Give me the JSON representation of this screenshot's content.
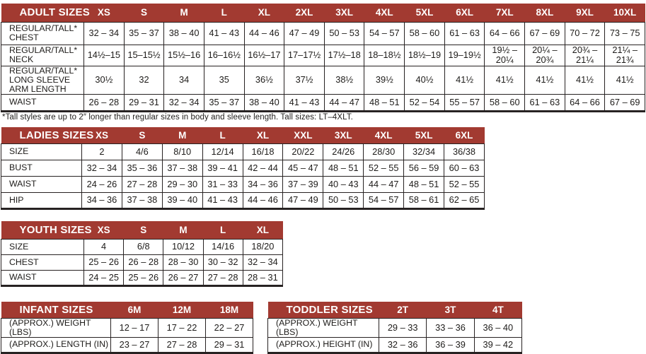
{
  "colors": {
    "header_bg": "#A23A31",
    "header_text": "#FFFFFF",
    "border": "#272222",
    "body_text": "#1E1C1A"
  },
  "footnote": "*Tall styles are up to 2″ longer than regular sizes in body and sleeve length. Tall sizes: LT–4XLT.",
  "tables": {
    "adult": {
      "title": "ADULT SIZES",
      "columns": [
        "XS",
        "S",
        "M",
        "L",
        "XL",
        "2XL",
        "3XL",
        "4XL",
        "5XL",
        "6XL",
        "7XL",
        "8XL",
        "9XL",
        "10XL"
      ],
      "rows": [
        {
          "label": "REGULAR/TALL*\nCHEST",
          "values": [
            "32 – 34",
            "35 – 37",
            "38 – 40",
            "41 – 43",
            "44 – 46",
            "47 – 49",
            "50 – 53",
            "54 – 57",
            "58 – 60",
            "61 – 63",
            "64 – 66",
            "67 – 69",
            "70 – 72",
            "73 – 75"
          ]
        },
        {
          "label": "REGULAR/TALL*\nNECK",
          "values": [
            "14½–15",
            "15–15½",
            "15½–16",
            "16–16½",
            "16½–17",
            "17–17½",
            "17½–18",
            "18–18½",
            "18½–19",
            "19–19½",
            "19½ –\n20¼",
            "20¼ –\n20¾",
            "20¾ –\n21¼",
            "21¼ –\n21¾"
          ]
        },
        {
          "label": "REGULAR/TALL*\nLONG SLEEVE\nARM LENGTH",
          "values": [
            "30½",
            "32",
            "34",
            "35",
            "36½",
            "37½",
            "38½",
            "39½",
            "40½",
            "41½",
            "41½",
            "41½",
            "41½",
            "41½"
          ]
        },
        {
          "label": "WAIST",
          "values": [
            "26 – 28",
            "29 – 31",
            "32 – 34",
            "35 – 37",
            "38 – 40",
            "41 – 43",
            "44 – 47",
            "48 – 51",
            "52 – 54",
            "55 – 57",
            "58 – 60",
            "61 – 63",
            "64 – 66",
            "67 – 69"
          ]
        }
      ]
    },
    "ladies": {
      "title": "LADIES SIZES",
      "columns": [
        "XS",
        "S",
        "M",
        "L",
        "XL",
        "XXL",
        "3XL",
        "4XL",
        "5XL",
        "6XL"
      ],
      "rows": [
        {
          "label": "SIZE",
          "values": [
            "2",
            "4/6",
            "8/10",
            "12/14",
            "16/18",
            "20/22",
            "24/26",
            "28/30",
            "32/34",
            "36/38"
          ]
        },
        {
          "label": "BUST",
          "values": [
            "32 – 34",
            "35 – 36",
            "37 – 38",
            "39 – 41",
            "42 – 44",
            "45 – 47",
            "48 – 51",
            "52 – 55",
            "56 – 59",
            "60 – 63"
          ]
        },
        {
          "label": "WAIST",
          "values": [
            "24 – 26",
            "27 – 28",
            "29 – 30",
            "31 – 33",
            "34 – 36",
            "37 – 39",
            "40 – 43",
            "44 – 47",
            "48 – 51",
            "52 – 55"
          ]
        },
        {
          "label": "HIP",
          "values": [
            "34 – 36",
            "37 – 38",
            "39 – 40",
            "41 – 43",
            "44 – 46",
            "47 – 49",
            "50 – 53",
            "54 – 57",
            "58 – 61",
            "62 – 65"
          ]
        }
      ]
    },
    "youth": {
      "title": "YOUTH SIZES",
      "columns": [
        "XS",
        "S",
        "M",
        "L",
        "XL"
      ],
      "rows": [
        {
          "label": "SIZE",
          "values": [
            "4",
            "6/8",
            "10/12",
            "14/16",
            "18/20"
          ]
        },
        {
          "label": "CHEST",
          "values": [
            "25 – 26",
            "26 – 28",
            "28 – 30",
            "30 – 32",
            "32 – 34"
          ]
        },
        {
          "label": "WAIST",
          "values": [
            "24 – 25",
            "25 – 26",
            "26 – 27",
            "27 – 28",
            "28 – 31"
          ]
        }
      ]
    },
    "infant": {
      "title": "INFANT SIZES",
      "columns": [
        "6M",
        "12M",
        "18M"
      ],
      "rows": [
        {
          "label": "(APPROX.) WEIGHT (LBS)",
          "values": [
            "12 – 17",
            "17 – 22",
            "22 – 27"
          ]
        },
        {
          "label": "(APPROX.) LENGTH (IN)",
          "values": [
            "23 – 27",
            "27 – 28",
            "29 – 31"
          ]
        }
      ]
    },
    "toddler": {
      "title": "TODDLER SIZES",
      "columns": [
        "2T",
        "3T",
        "4T"
      ],
      "rows": [
        {
          "label": "(APPROX.) WEIGHT (LBS)",
          "values": [
            "29 – 33",
            "33 – 36",
            "36 – 40"
          ]
        },
        {
          "label": "(APPROX.) HEIGHT (IN)",
          "values": [
            "32 – 36",
            "36 – 39",
            "39 – 42"
          ]
        }
      ]
    }
  }
}
